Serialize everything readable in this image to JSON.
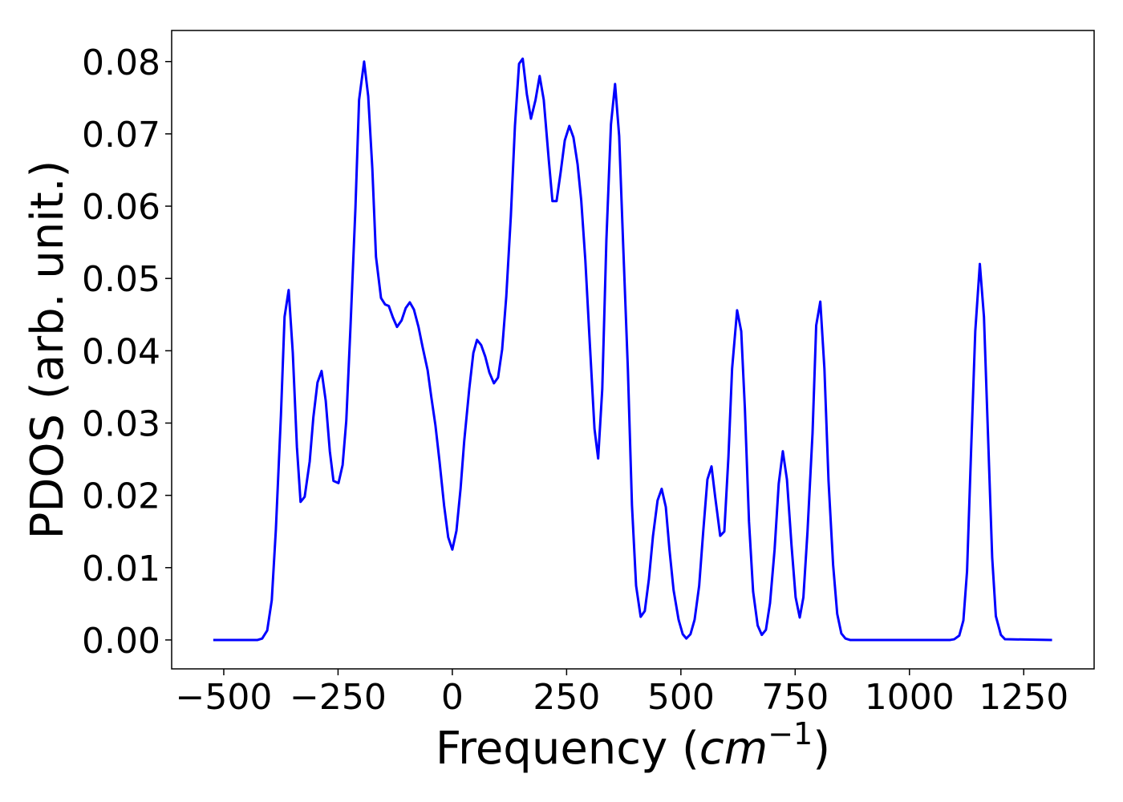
{
  "chart_data": {
    "type": "line",
    "xlabel": [
      "Frequency (",
      "cm",
      "−1",
      ")"
    ],
    "ylabel": "PDOS (arb. unit.)",
    "color": "#0000ff",
    "xlim": [
      -614,
      1404
    ],
    "ylim": [
      -0.004,
      0.0843
    ],
    "xticks": [
      {
        "value": -500,
        "label": "−500"
      },
      {
        "value": -250,
        "label": "−250"
      },
      0,
      250,
      500,
      750,
      1000,
      1250
    ],
    "yticks": [
      {
        "value": 0,
        "label": "0.00"
      },
      0.01,
      0.02,
      0.03,
      0.04,
      0.05,
      0.06,
      0.07,
      0.08
    ],
    "x": [
      -523,
      -426,
      -416,
      -405,
      -395,
      -386,
      -375,
      -367,
      -358,
      -349,
      -340,
      -332,
      -323,
      -312,
      -304,
      -295,
      -286,
      -277,
      -268,
      -260,
      -249,
      -240,
      -232,
      -223,
      -212,
      -204,
      -193,
      -184,
      -175,
      -167,
      -156,
      -147,
      -139,
      -130,
      -121,
      -111,
      -102,
      -93,
      -84,
      -74,
      -65,
      -54,
      -46,
      -37,
      -28,
      -18,
      -9,
      0,
      9,
      18,
      26,
      37,
      46,
      54,
      63,
      72,
      81,
      91,
      100,
      109,
      118,
      128,
      137,
      146,
      154,
      163,
      172,
      182,
      191,
      200,
      211,
      219,
      228,
      237,
      246,
      256,
      265,
      274,
      282,
      291,
      300,
      311,
      319,
      328,
      337,
      347,
      356,
      365,
      374,
      384,
      393,
      402,
      412,
      421,
      430,
      439,
      449,
      458,
      467,
      475,
      484,
      495,
      504,
      512,
      521,
      530,
      540,
      549,
      558,
      567,
      575,
      586,
      595,
      604,
      612,
      623,
      632,
      640,
      649,
      658,
      668,
      677,
      686,
      695,
      705,
      714,
      723,
      732,
      742,
      751,
      760,
      768,
      777,
      788,
      796,
      805,
      814,
      823,
      833,
      842,
      851,
      860,
      870,
      1089,
      1098,
      1109,
      1118,
      1126,
      1135,
      1144,
      1154,
      1163,
      1172,
      1181,
      1189,
      1200,
      1209,
      1312
    ],
    "values": [
      0,
      0,
      0.0002,
      0.0013,
      0.0055,
      0.0153,
      0.031,
      0.0447,
      0.0484,
      0.0397,
      0.0267,
      0.0191,
      0.0198,
      0.0247,
      0.0308,
      0.0356,
      0.0372,
      0.0331,
      0.0261,
      0.022,
      0.0217,
      0.0242,
      0.0303,
      0.043,
      0.0597,
      0.0747,
      0.08,
      0.0752,
      0.0652,
      0.053,
      0.0473,
      0.0464,
      0.0462,
      0.0446,
      0.0433,
      0.0442,
      0.0459,
      0.0467,
      0.0457,
      0.0433,
      0.0405,
      0.0373,
      0.0336,
      0.0297,
      0.0247,
      0.0186,
      0.0142,
      0.0125,
      0.0151,
      0.0209,
      0.0275,
      0.0347,
      0.0397,
      0.0415,
      0.0408,
      0.0392,
      0.037,
      0.0355,
      0.0363,
      0.0402,
      0.0475,
      0.0586,
      0.0711,
      0.0797,
      0.0804,
      0.0755,
      0.0721,
      0.0747,
      0.078,
      0.0747,
      0.0664,
      0.0607,
      0.0607,
      0.0647,
      0.0691,
      0.0711,
      0.0695,
      0.0658,
      0.0608,
      0.0525,
      0.0419,
      0.0292,
      0.0251,
      0.0347,
      0.0553,
      0.0713,
      0.0769,
      0.0697,
      0.0542,
      0.0375,
      0.0186,
      0.0075,
      0.0032,
      0.004,
      0.0084,
      0.0144,
      0.0193,
      0.0209,
      0.0184,
      0.0125,
      0.0069,
      0.0028,
      0.0008,
      0.0002,
      0.0008,
      0.0028,
      0.0075,
      0.0151,
      0.0222,
      0.024,
      0.0198,
      0.0144,
      0.015,
      0.0253,
      0.0375,
      0.0456,
      0.0427,
      0.032,
      0.0164,
      0.0067,
      0.002,
      0.0007,
      0.0014,
      0.0051,
      0.0125,
      0.0216,
      0.0261,
      0.0222,
      0.0131,
      0.0059,
      0.0031,
      0.0059,
      0.015,
      0.0286,
      0.0435,
      0.0468,
      0.0375,
      0.022,
      0.0104,
      0.0036,
      0.0009,
      0.0002,
      0,
      0,
      0.0001,
      0.0006,
      0.0027,
      0.0095,
      0.0264,
      0.0427,
      0.052,
      0.0447,
      0.0281,
      0.0114,
      0.0033,
      0.0007,
      0.0001,
      0
    ]
  }
}
